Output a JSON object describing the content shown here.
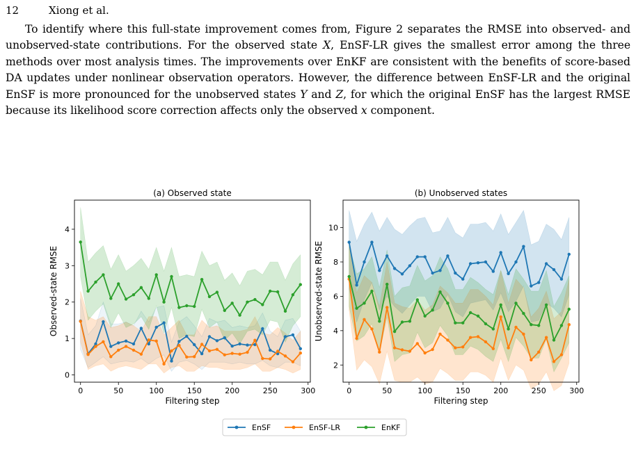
{
  "header": {
    "page_number": "12",
    "running_head": "Xiong et al."
  },
  "paragraph": {
    "p1": "To identify where this full-state improvement comes from, Figure 2 separates the RMSE into observed- and unobserved-state contributions. For the observed state ",
    "var_x_cap": "X",
    "p2": ", EnSF-LR gives the smallest error among the three methods over most analysis times. The improvements over EnKF are consistent with the benefits of score-based DA updates under nonlinear observation operators. However, the difference between EnSF-LR and the original EnSF is more pronounced for the unobserved states ",
    "var_y_cap": "Y",
    "p3": " and ",
    "var_z_cap": "Z",
    "p4": ", for which the original EnSF has the largest RMSE because its likelihood score correction affects only the observed ",
    "var_x_low": "x",
    "p5": " component."
  },
  "legend": {
    "items": [
      "EnSF",
      "EnSF-LR",
      "EnKF"
    ]
  },
  "colors": {
    "EnSF": "#1f77b4",
    "EnSF-LR": "#ff7f0e",
    "EnKF": "#2ca02c"
  },
  "chart_data": [
    {
      "type": "line",
      "title": "(a) Observed state",
      "xlabel": "Filtering step",
      "ylabel": "Observed-state RMSE",
      "xlim": [
        -8,
        303
      ],
      "ylim": [
        -0.2,
        4.8
      ],
      "xticks": [
        0,
        50,
        100,
        150,
        200,
        250,
        300
      ],
      "yticks": [
        0,
        1,
        2,
        3,
        4
      ],
      "x": [
        0,
        10,
        20,
        30,
        40,
        50,
        60,
        70,
        80,
        90,
        100,
        110,
        120,
        130,
        140,
        150,
        160,
        170,
        180,
        190,
        200,
        210,
        220,
        230,
        240,
        250,
        260,
        270,
        280,
        290
      ],
      "series": [
        {
          "name": "EnSF",
          "values": [
            1.48,
            0.58,
            0.85,
            1.46,
            0.78,
            0.88,
            0.93,
            0.85,
            1.28,
            0.85,
            1.31,
            1.43,
            0.38,
            0.92,
            1.06,
            0.83,
            0.58,
            1.05,
            0.94,
            1.02,
            0.79,
            0.85,
            0.82,
            0.83,
            1.27,
            0.68,
            0.58,
            1.05,
            1.1,
            0.72
          ],
          "lower": [
            0.7,
            0.2,
            0.35,
            0.5,
            0.3,
            0.35,
            0.38,
            0.35,
            0.45,
            0.3,
            0.45,
            0.55,
            0.1,
            0.35,
            0.4,
            0.3,
            0.15,
            0.35,
            0.35,
            0.35,
            0.3,
            0.35,
            0.3,
            0.3,
            0.4,
            0.25,
            0.2,
            0.35,
            0.35,
            0.25
          ],
          "upper": [
            2.1,
            1.1,
            1.35,
            2.0,
            1.4,
            1.4,
            1.45,
            1.35,
            1.75,
            1.45,
            1.85,
            1.9,
            0.9,
            1.45,
            1.6,
            1.35,
            1.05,
            1.55,
            1.45,
            1.5,
            1.3,
            1.35,
            1.3,
            1.35,
            1.7,
            1.2,
            1.05,
            1.5,
            1.55,
            1.2
          ]
        },
        {
          "name": "EnSF-LR",
          "values": [
            1.47,
            0.56,
            0.78,
            0.91,
            0.5,
            0.68,
            0.78,
            0.68,
            0.57,
            0.96,
            0.93,
            0.3,
            0.66,
            0.81,
            0.49,
            0.5,
            0.84,
            0.66,
            0.7,
            0.55,
            0.59,
            0.57,
            0.62,
            0.95,
            0.45,
            0.44,
            0.65,
            0.52,
            0.36,
            0.6
          ],
          "lower": [
            0.9,
            0.15,
            0.25,
            0.3,
            0.1,
            0.2,
            0.25,
            0.2,
            0.15,
            0.3,
            0.3,
            0.05,
            0.2,
            0.25,
            0.1,
            0.1,
            0.25,
            0.2,
            0.2,
            0.15,
            0.15,
            0.15,
            0.2,
            0.3,
            0.1,
            0.1,
            0.2,
            0.15,
            0.05,
            0.15
          ],
          "upper": [
            2.3,
            1.6,
            1.5,
            1.6,
            1.3,
            1.35,
            1.45,
            1.35,
            1.2,
            1.6,
            1.6,
            1.1,
            1.3,
            1.5,
            1.1,
            1.1,
            1.5,
            1.3,
            1.35,
            1.2,
            1.2,
            1.2,
            1.25,
            1.6,
            1.15,
            1.1,
            1.3,
            1.15,
            0.95,
            1.2
          ]
        },
        {
          "name": "EnKF",
          "values": [
            3.65,
            2.3,
            2.55,
            2.75,
            2.1,
            2.5,
            2.08,
            2.2,
            2.4,
            2.1,
            2.75,
            2.0,
            2.7,
            1.85,
            1.9,
            1.88,
            2.62,
            2.15,
            2.27,
            1.77,
            1.97,
            1.64,
            2.0,
            2.07,
            1.93,
            2.3,
            2.28,
            1.75,
            2.2,
            2.48
          ],
          "lower": [
            2.7,
            1.5,
            1.75,
            1.95,
            1.3,
            1.7,
            1.3,
            1.4,
            1.6,
            1.25,
            1.9,
            1.15,
            1.85,
            1.0,
            1.1,
            1.05,
            1.8,
            1.3,
            1.45,
            0.95,
            1.15,
            0.85,
            1.2,
            1.25,
            1.1,
            1.5,
            1.45,
            0.9,
            1.35,
            1.6
          ],
          "upper": [
            4.6,
            3.1,
            3.35,
            3.55,
            2.9,
            3.3,
            2.85,
            3.0,
            3.2,
            2.9,
            3.5,
            2.85,
            3.5,
            2.7,
            2.75,
            2.7,
            3.4,
            3.0,
            3.1,
            2.6,
            2.8,
            2.45,
            2.85,
            2.9,
            2.75,
            3.1,
            3.1,
            2.6,
            3.05,
            3.3
          ]
        }
      ]
    },
    {
      "type": "line",
      "title": "(b) Unobserved states",
      "xlabel": "Filtering step",
      "ylabel": "Unobserved-state RMSE",
      "xlim": [
        -8,
        303
      ],
      "ylim": [
        1.0,
        11.6
      ],
      "xticks": [
        0,
        50,
        100,
        150,
        200,
        250,
        300
      ],
      "yticks": [
        2,
        4,
        6,
        8,
        10
      ],
      "x": [
        0,
        10,
        20,
        30,
        40,
        50,
        60,
        70,
        80,
        90,
        100,
        110,
        120,
        130,
        140,
        150,
        160,
        170,
        180,
        190,
        200,
        210,
        220,
        230,
        240,
        250,
        260,
        270,
        280,
        290
      ],
      "series": [
        {
          "name": "EnSF",
          "values": [
            9.15,
            6.65,
            8.0,
            9.15,
            7.5,
            8.35,
            7.62,
            7.3,
            7.78,
            8.3,
            8.3,
            7.35,
            7.5,
            8.35,
            7.35,
            7.0,
            7.9,
            7.95,
            8.0,
            7.45,
            8.55,
            7.32,
            8.0,
            8.9,
            6.6,
            6.8,
            7.9,
            7.55,
            7.0,
            8.45
          ],
          "lower": [
            6.4,
            4.5,
            5.8,
            6.8,
            5.2,
            6.0,
            5.4,
            5.0,
            5.5,
            6.0,
            6.0,
            5.1,
            5.3,
            6.1,
            5.1,
            4.8,
            5.6,
            5.7,
            5.8,
            5.2,
            6.2,
            5.1,
            5.7,
            6.6,
            4.5,
            4.6,
            5.6,
            5.3,
            4.8,
            6.1
          ],
          "upper": [
            11.0,
            9.2,
            10.2,
            10.9,
            9.8,
            10.6,
            9.9,
            9.6,
            10.1,
            10.5,
            10.6,
            9.7,
            9.8,
            10.6,
            9.7,
            9.4,
            10.2,
            10.2,
            10.3,
            9.8,
            10.8,
            9.6,
            10.3,
            11.0,
            9.0,
            9.2,
            10.2,
            9.9,
            9.3,
            10.6
          ]
        },
        {
          "name": "EnSF-LR",
          "values": [
            7.0,
            3.55,
            4.65,
            4.1,
            2.75,
            5.35,
            3.0,
            2.88,
            2.8,
            3.25,
            2.7,
            2.9,
            3.8,
            3.45,
            3.0,
            3.05,
            3.6,
            3.65,
            3.35,
            2.95,
            4.8,
            3.0,
            4.2,
            3.8,
            2.3,
            2.75,
            3.6,
            2.2,
            2.6,
            4.35
          ],
          "lower": [
            5.2,
            1.7,
            2.3,
            1.9,
            0.9,
            2.8,
            1.1,
            1.0,
            1.0,
            1.3,
            0.9,
            1.0,
            1.8,
            1.5,
            1.1,
            1.1,
            1.6,
            1.6,
            1.4,
            1.0,
            2.4,
            1.1,
            2.0,
            1.7,
            0.6,
            0.9,
            1.6,
            0.5,
            0.8,
            2.1
          ],
          "upper": [
            8.9,
            6.2,
            7.2,
            6.8,
            5.4,
            8.0,
            5.6,
            5.4,
            5.3,
            5.8,
            5.2,
            5.5,
            6.6,
            6.2,
            5.6,
            5.6,
            6.4,
            6.4,
            6.0,
            5.5,
            7.5,
            5.6,
            7.0,
            6.5,
            4.8,
            5.3,
            6.3,
            4.7,
            5.1,
            7.0
          ]
        },
        {
          "name": "EnKF",
          "values": [
            7.15,
            5.3,
            5.6,
            6.3,
            4.55,
            6.7,
            3.95,
            4.5,
            4.55,
            5.8,
            4.85,
            5.2,
            6.25,
            5.6,
            4.45,
            4.45,
            5.05,
            4.85,
            4.4,
            4.1,
            5.5,
            4.1,
            5.6,
            5.0,
            4.35,
            4.3,
            5.5,
            3.45,
            4.3,
            5.25
          ],
          "lower": [
            5.4,
            3.4,
            3.7,
            4.4,
            2.7,
            4.8,
            2.2,
            2.6,
            2.7,
            3.9,
            3.0,
            3.3,
            4.3,
            3.7,
            2.6,
            2.6,
            3.1,
            2.9,
            2.5,
            2.2,
            3.5,
            2.2,
            3.6,
            3.1,
            2.4,
            2.4,
            3.5,
            1.6,
            2.4,
            3.3
          ],
          "upper": [
            9.0,
            7.3,
            7.6,
            8.3,
            6.5,
            8.7,
            6.0,
            6.5,
            6.6,
            7.8,
            6.9,
            7.2,
            8.3,
            7.6,
            6.4,
            6.4,
            7.1,
            6.8,
            6.4,
            6.1,
            7.5,
            6.1,
            7.6,
            7.0,
            6.3,
            6.3,
            7.5,
            5.4,
            6.2,
            7.2
          ]
        }
      ]
    }
  ]
}
